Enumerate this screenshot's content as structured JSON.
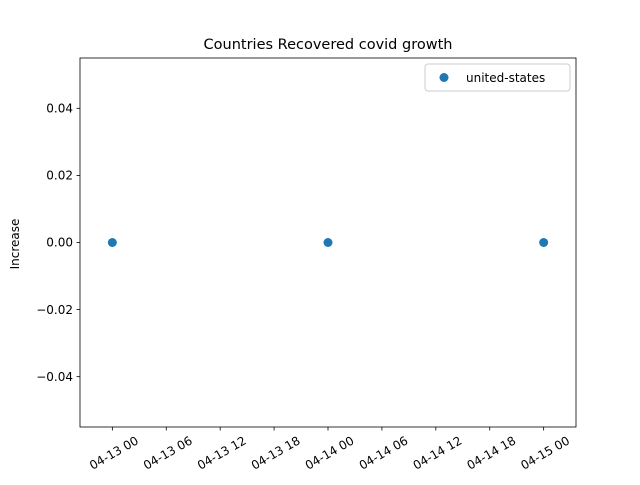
{
  "chart_data": {
    "type": "scatter",
    "title": "Countries Recovered covid growth",
    "xlabel": "",
    "ylabel": "Increase",
    "x_ticks": [
      "04-13 00",
      "04-13 06",
      "04-13 12",
      "04-13 18",
      "04-14 00",
      "04-14 06",
      "04-14 12",
      "04-14 18",
      "04-15 00"
    ],
    "y_ticks": [
      "0.04",
      "0.02",
      "0.00",
      "−0.02",
      "−0.04"
    ],
    "y_tick_values": [
      0.04,
      0.02,
      0.0,
      -0.02,
      -0.04
    ],
    "xlim": [
      "2020-04-12 20:24",
      "2020-04-15 03:36"
    ],
    "ylim": [
      -0.055,
      0.055
    ],
    "grid": false,
    "legend_position": "top-right",
    "series": [
      {
        "name": "united-states",
        "color": "#1f77b4",
        "marker": "circle",
        "x": [
          "04-13 00",
          "04-14 00",
          "04-15 00"
        ],
        "y": [
          0,
          0,
          0
        ]
      }
    ]
  }
}
